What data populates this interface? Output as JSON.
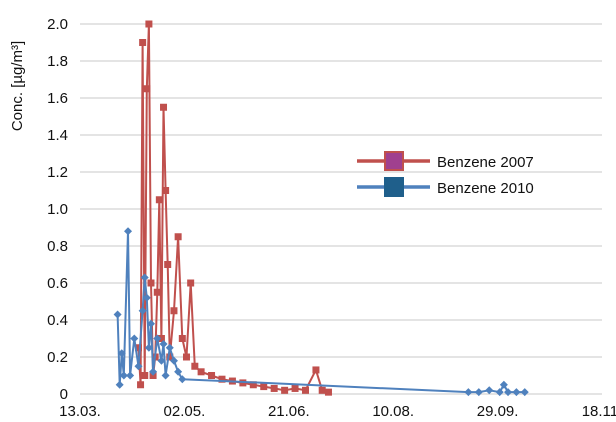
{
  "chart_data": {
    "type": "line",
    "ylabel": "Conc. [µg/m³]",
    "xlabel": "",
    "title": "",
    "ylim": [
      0,
      2.0
    ],
    "yticks": [
      "0",
      "0.2",
      "0.4",
      "0.6",
      "0.8",
      "1.0",
      "1.2",
      "1.4",
      "1.6",
      "1.8",
      "2.0"
    ],
    "xlim": [
      "2021-03-13",
      "2021-11-18"
    ],
    "xticks": [
      {
        "label": "13.03.",
        "date": "2021-03-13"
      },
      {
        "label": "02.05.",
        "date": "2021-05-02"
      },
      {
        "label": "21.06.",
        "date": "2021-06-21"
      },
      {
        "label": "10.08.",
        "date": "2021-08-10"
      },
      {
        "label": "29.09.",
        "date": "2021-09-29"
      },
      {
        "label": "18.11.",
        "date": "2021-11-18"
      }
    ],
    "grid": "horizontal",
    "legend_position": "center-right",
    "series": [
      {
        "name": "Benzene 2007",
        "line_color": "#c0504d",
        "legend_marker_fill": "#a0408f",
        "legend_marker_border": "#c0504d",
        "marker": "square",
        "points": [
          {
            "x": "2021-04-10",
            "y": 0.25
          },
          {
            "x": "2021-04-11",
            "y": 0.05
          },
          {
            "x": "2021-04-12",
            "y": 1.9
          },
          {
            "x": "2021-04-13",
            "y": 0.1
          },
          {
            "x": "2021-04-14",
            "y": 1.65
          },
          {
            "x": "2021-04-15",
            "y": 2.0
          },
          {
            "x": "2021-04-16",
            "y": 0.6
          },
          {
            "x": "2021-04-17",
            "y": 0.1
          },
          {
            "x": "2021-04-18",
            "y": 0.2
          },
          {
            "x": "2021-04-19",
            "y": 0.55
          },
          {
            "x": "2021-04-20",
            "y": 1.05
          },
          {
            "x": "2021-04-21",
            "y": 0.3
          },
          {
            "x": "2021-04-22",
            "y": 1.55
          },
          {
            "x": "2021-04-23",
            "y": 1.1
          },
          {
            "x": "2021-04-24",
            "y": 0.7
          },
          {
            "x": "2021-04-25",
            "y": 0.2
          },
          {
            "x": "2021-04-27",
            "y": 0.45
          },
          {
            "x": "2021-04-29",
            "y": 0.85
          },
          {
            "x": "2021-05-01",
            "y": 0.3
          },
          {
            "x": "2021-05-03",
            "y": 0.2
          },
          {
            "x": "2021-05-05",
            "y": 0.6
          },
          {
            "x": "2021-05-07",
            "y": 0.15
          },
          {
            "x": "2021-05-10",
            "y": 0.12
          },
          {
            "x": "2021-05-15",
            "y": 0.1
          },
          {
            "x": "2021-05-20",
            "y": 0.08
          },
          {
            "x": "2021-05-25",
            "y": 0.07
          },
          {
            "x": "2021-05-30",
            "y": 0.06
          },
          {
            "x": "2021-06-04",
            "y": 0.05
          },
          {
            "x": "2021-06-09",
            "y": 0.04
          },
          {
            "x": "2021-06-14",
            "y": 0.03
          },
          {
            "x": "2021-06-19",
            "y": 0.02
          },
          {
            "x": "2021-06-24",
            "y": 0.03
          },
          {
            "x": "2021-06-29",
            "y": 0.02
          },
          {
            "x": "2021-07-04",
            "y": 0.13
          },
          {
            "x": "2021-07-07",
            "y": 0.02
          },
          {
            "x": "2021-07-10",
            "y": 0.01
          }
        ]
      },
      {
        "name": "Benzene 2010",
        "line_color": "#4f81bd",
        "legend_marker_fill": "#1f5f8b",
        "legend_marker_border": "#1f5f8b",
        "marker": "diamond",
        "points": [
          {
            "x": "2021-03-31",
            "y": 0.43
          },
          {
            "x": "2021-04-01",
            "y": 0.05
          },
          {
            "x": "2021-04-02",
            "y": 0.22
          },
          {
            "x": "2021-04-03",
            "y": 0.1
          },
          {
            "x": "2021-04-05",
            "y": 0.88
          },
          {
            "x": "2021-04-06",
            "y": 0.1
          },
          {
            "x": "2021-04-08",
            "y": 0.3
          },
          {
            "x": "2021-04-10",
            "y": 0.15
          },
          {
            "x": "2021-04-12",
            "y": 0.45
          },
          {
            "x": "2021-04-13",
            "y": 0.63
          },
          {
            "x": "2021-04-14",
            "y": 0.52
          },
          {
            "x": "2021-04-15",
            "y": 0.25
          },
          {
            "x": "2021-04-16",
            "y": 0.38
          },
          {
            "x": "2021-04-17",
            "y": 0.12
          },
          {
            "x": "2021-04-19",
            "y": 0.3
          },
          {
            "x": "2021-04-21",
            "y": 0.18
          },
          {
            "x": "2021-04-22",
            "y": 0.27
          },
          {
            "x": "2021-04-23",
            "y": 0.1
          },
          {
            "x": "2021-04-25",
            "y": 0.25
          },
          {
            "x": "2021-04-27",
            "y": 0.18
          },
          {
            "x": "2021-04-29",
            "y": 0.12
          },
          {
            "x": "2021-05-01",
            "y": 0.08
          },
          {
            "x": "2021-09-15",
            "y": 0.01
          },
          {
            "x": "2021-09-20",
            "y": 0.01
          },
          {
            "x": "2021-09-25",
            "y": 0.02
          },
          {
            "x": "2021-09-30",
            "y": 0.01
          },
          {
            "x": "2021-10-02",
            "y": 0.05
          },
          {
            "x": "2021-10-04",
            "y": 0.01
          },
          {
            "x": "2021-10-08",
            "y": 0.01
          },
          {
            "x": "2021-10-12",
            "y": 0.01
          }
        ]
      }
    ]
  }
}
